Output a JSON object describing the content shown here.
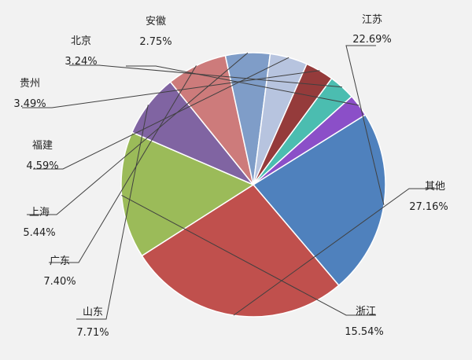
{
  "chart_data": {
    "type": "pie",
    "title": "",
    "legend": "none",
    "start_angle_deg": 58,
    "direction": "clockwise",
    "slices": [
      {
        "label": "江苏",
        "value": 22.69,
        "pct_text": "22.69%",
        "color": "#4f81bd"
      },
      {
        "label": "其他",
        "value": 27.16,
        "pct_text": "27.16%",
        "color": "#c0504d"
      },
      {
        "label": "浙江",
        "value": 15.54,
        "pct_text": "15.54%",
        "color": "#9bbb59"
      },
      {
        "label": "山东",
        "value": 7.71,
        "pct_text": "7.71%",
        "color": "#8064a2"
      },
      {
        "label": "广东",
        "value": 7.4,
        "pct_text": "7.40%",
        "color": "#cd7b7b"
      },
      {
        "label": "上海",
        "value": 5.44,
        "pct_text": "5.44%",
        "color": "#7f9dc8"
      },
      {
        "label": "福建",
        "value": 4.59,
        "pct_text": "4.59%",
        "color": "#b7c4df"
      },
      {
        "label": "贵州",
        "value": 3.49,
        "pct_text": "3.49%",
        "color": "#953b3b"
      },
      {
        "label": "北京",
        "value": 3.24,
        "pct_text": "3.24%",
        "color": "#4bbdb0"
      },
      {
        "label": "安徽",
        "value": 2.75,
        "pct_text": "2.75%",
        "color": "#8b4fc8"
      }
    ]
  }
}
